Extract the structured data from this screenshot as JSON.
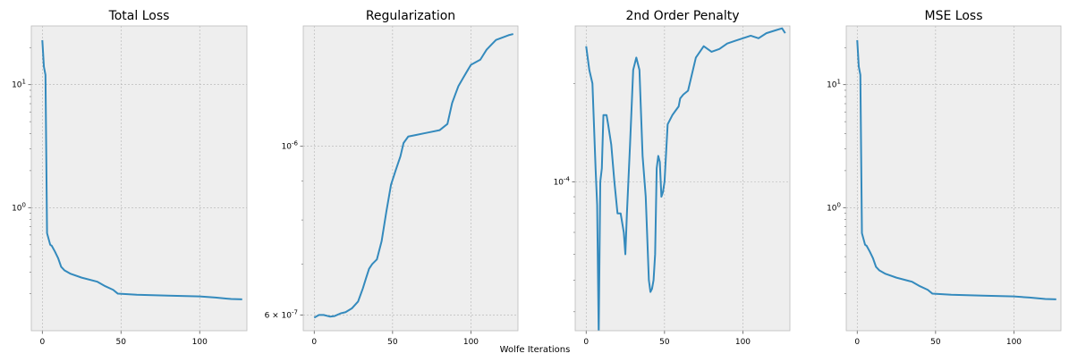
{
  "figure": {
    "xlabel": "Wolfe Iterations"
  },
  "colors": {
    "line": "#348abd",
    "axes_bg": "#eeeeee",
    "grid": "#b2b2b2",
    "spine": "#bcbcbc"
  },
  "chart_data": [
    {
      "type": "line",
      "title": "Total Loss",
      "yscale": "log",
      "xlim": [
        -7,
        130
      ],
      "ylim": [
        0.1,
        30
      ],
      "xticks": [
        0,
        50,
        100
      ],
      "xtick_labels": [
        "0",
        "50",
        "100"
      ],
      "yticks": [
        1,
        10
      ],
      "ytick_labels": [
        "10^0",
        "10^1"
      ],
      "grid": true,
      "x": [
        0,
        1,
        2,
        3,
        5,
        6,
        8,
        10,
        12,
        14,
        18,
        25,
        35,
        40,
        45,
        48,
        60,
        80,
        100,
        110,
        120,
        127
      ],
      "y": [
        23,
        14,
        12,
        0.62,
        0.5,
        0.49,
        0.44,
        0.39,
        0.33,
        0.31,
        0.29,
        0.27,
        0.25,
        0.23,
        0.215,
        0.2,
        0.196,
        0.193,
        0.19,
        0.186,
        0.181,
        0.18
      ]
    },
    {
      "type": "line",
      "title": "Regularization",
      "yscale": "log",
      "xlim": [
        -7,
        130
      ],
      "ylim": [
        5.72e-07,
        1.44e-06
      ],
      "xticks": [
        0,
        50,
        100
      ],
      "xtick_labels": [
        "0",
        "50",
        "100"
      ],
      "yticks": [
        6e-07,
        1e-06
      ],
      "ytick_labels": [
        "6 × 10^-7",
        "10^-6"
      ],
      "grid": true,
      "x": [
        0,
        3,
        6,
        10,
        13,
        17,
        20,
        24,
        28,
        31,
        33,
        35,
        37,
        40,
        43,
        46,
        49,
        52,
        55,
        57,
        60,
        65,
        70,
        75,
        80,
        85,
        88,
        90,
        92,
        95,
        98,
        100,
        103,
        106,
        108,
        110,
        113,
        116,
        120,
        124,
        127
      ],
      "y": [
        5.95e-07,
        6e-07,
        6e-07,
        5.97e-07,
        5.98e-07,
        6.03e-07,
        6.05e-07,
        6.12e-07,
        6.25e-07,
        6.5e-07,
        6.7e-07,
        6.9e-07,
        7e-07,
        7.1e-07,
        7.5e-07,
        8.2e-07,
        8.9e-07,
        9.3e-07,
        9.7e-07,
        1.01e-06,
        1.03e-06,
        1.035e-06,
        1.04e-06,
        1.045e-06,
        1.05e-06,
        1.07e-06,
        1.14e-06,
        1.17e-06,
        1.2e-06,
        1.23e-06,
        1.26e-06,
        1.28e-06,
        1.29e-06,
        1.3e-06,
        1.32e-06,
        1.34e-06,
        1.36e-06,
        1.38e-06,
        1.39e-06,
        1.4e-06,
        1.405e-06
      ]
    },
    {
      "type": "line",
      "title": "2nd Order Penalty",
      "yscale": "log",
      "xlim": [
        -7,
        130
      ],
      "ylim": [
        3.5e-05,
        0.0003
      ],
      "xticks": [
        0,
        50,
        100
      ],
      "xtick_labels": [
        "0",
        "50",
        "100"
      ],
      "yticks": [
        0.0001
      ],
      "ytick_labels": [
        "10^-4"
      ],
      "grid": true,
      "x": [
        0,
        2,
        4,
        6,
        7,
        8,
        9,
        10,
        11,
        13,
        14,
        16,
        18,
        20,
        22,
        24,
        25,
        26,
        28,
        30,
        32,
        34,
        36,
        38,
        40,
        41,
        42,
        43,
        44,
        45,
        46,
        47,
        48,
        49,
        50,
        52,
        55,
        57,
        59,
        60,
        62,
        65,
        70,
        75,
        80,
        85,
        90,
        95,
        100,
        105,
        110,
        115,
        120,
        125,
        127
      ],
      "y": [
        0.00026,
        0.00022,
        0.0002,
        0.00011,
        8.5e-05,
        3.4e-05,
        0.0001,
        0.00011,
        0.00016,
        0.00016,
        0.00015,
        0.00013,
        0.0001,
        8e-05,
        8e-05,
        7e-05,
        6e-05,
        8e-05,
        0.00013,
        0.00022,
        0.00024,
        0.00022,
        0.00012,
        9e-05,
        5e-05,
        4.6e-05,
        4.7e-05,
        5e-05,
        6e-05,
        0.00011,
        0.00012,
        0.000115,
        9e-05,
        9.3e-05,
        0.0001,
        0.00015,
        0.00016,
        0.000165,
        0.00017,
        0.00018,
        0.000185,
        0.00019,
        0.00024,
        0.00026,
        0.00025,
        0.000255,
        0.000265,
        0.00027,
        0.000275,
        0.00028,
        0.000275,
        0.000285,
        0.00029,
        0.000295,
        0.000285
      ]
    },
    {
      "type": "line",
      "title": "MSE Loss",
      "yscale": "log",
      "xlim": [
        -7,
        130
      ],
      "ylim": [
        0.1,
        30
      ],
      "xticks": [
        0,
        50,
        100
      ],
      "xtick_labels": [
        "0",
        "50",
        "100"
      ],
      "yticks": [
        1,
        10
      ],
      "ytick_labels": [
        "10^0",
        "10^1"
      ],
      "grid": true,
      "x": [
        0,
        1,
        2,
        3,
        5,
        6,
        8,
        10,
        12,
        14,
        18,
        25,
        35,
        40,
        45,
        48,
        60,
        80,
        100,
        110,
        120,
        127
      ],
      "y": [
        23,
        14,
        12,
        0.62,
        0.5,
        0.49,
        0.44,
        0.39,
        0.33,
        0.31,
        0.29,
        0.27,
        0.25,
        0.23,
        0.215,
        0.2,
        0.196,
        0.193,
        0.19,
        0.186,
        0.181,
        0.18
      ]
    }
  ]
}
